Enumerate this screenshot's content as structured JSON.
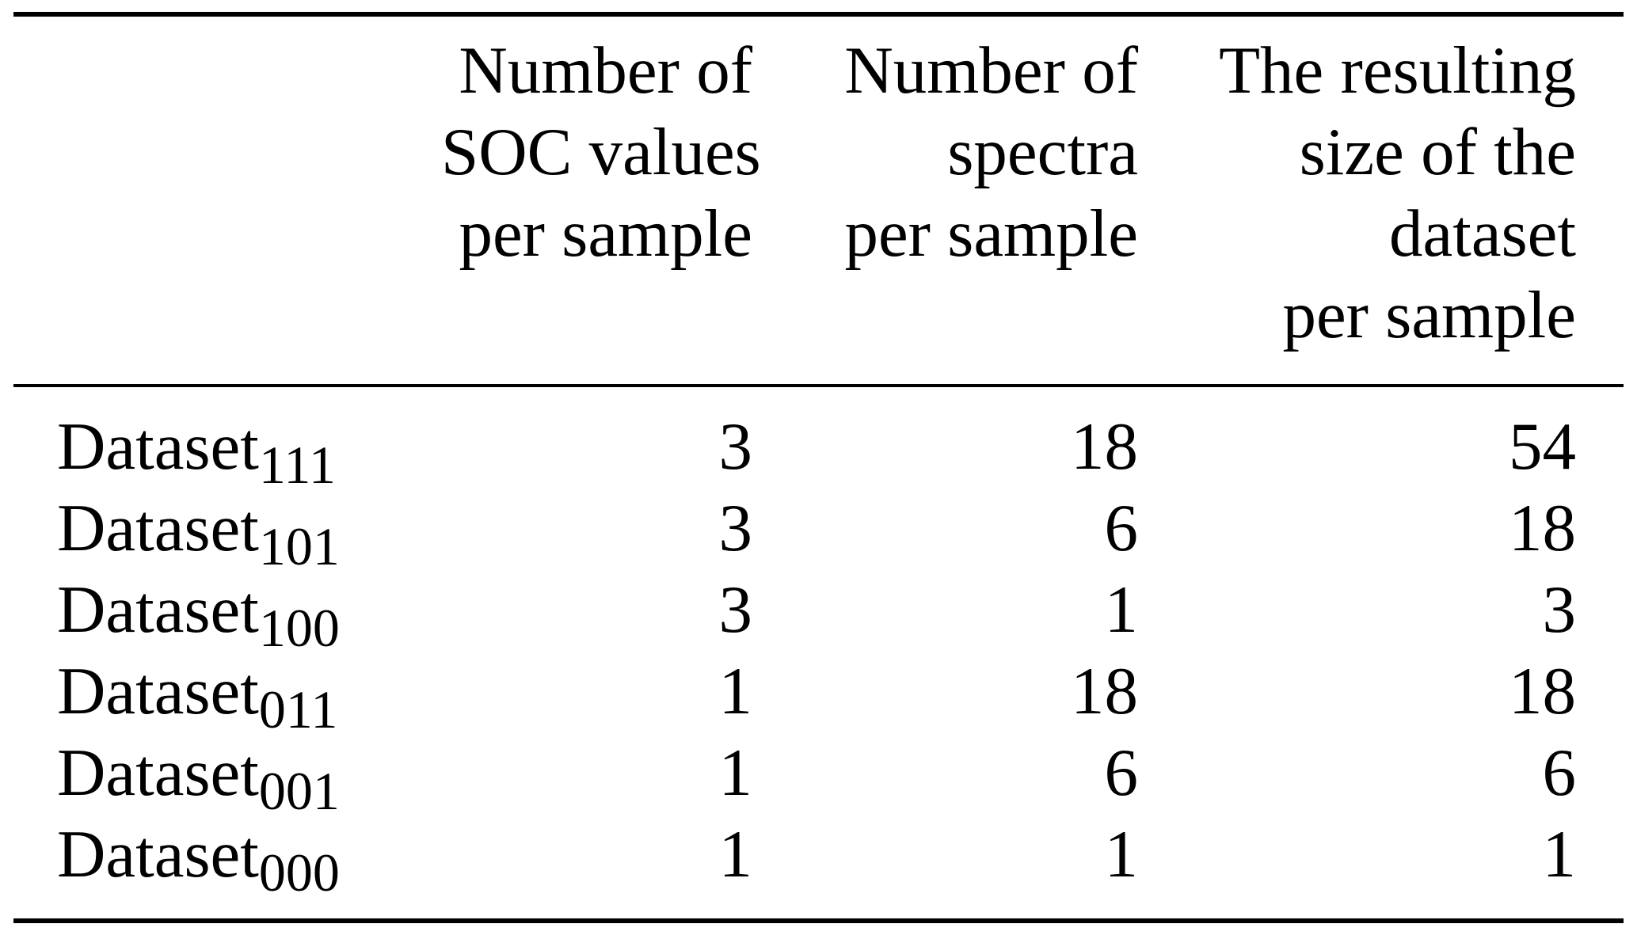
{
  "page": {
    "background_color": "#ffffff",
    "text_color": "#000000"
  },
  "table": {
    "header": {
      "label_col": "",
      "soc_col_lines": [
        "Number of",
        "SOC values",
        "per sample"
      ],
      "spectra_col_lines": [
        "Number of",
        "spectra",
        "per sample"
      ],
      "size_col_lines": [
        "The resulting",
        "size of the",
        "dataset",
        "per sample"
      ]
    },
    "rows": [
      {
        "label_base": "Dataset",
        "label_sub": "111",
        "soc": "3",
        "spectra": "18",
        "size": "54"
      },
      {
        "label_base": "Dataset",
        "label_sub": "101",
        "soc": "3",
        "spectra": "6",
        "size": "18"
      },
      {
        "label_base": "Dataset",
        "label_sub": "100",
        "soc": "3",
        "spectra": "1",
        "size": "3"
      },
      {
        "label_base": "Dataset",
        "label_sub": "011",
        "soc": "1",
        "spectra": "18",
        "size": "18"
      },
      {
        "label_base": "Dataset",
        "label_sub": "001",
        "soc": "1",
        "spectra": "6",
        "size": "6"
      },
      {
        "label_base": "Dataset",
        "label_sub": "000",
        "soc": "1",
        "spectra": "1",
        "size": "1"
      }
    ]
  },
  "chart_data": {
    "type": "table",
    "columns": [
      "",
      "Number of SOC values per sample",
      "Number of spectra per sample",
      "The resulting size of the dataset per sample"
    ],
    "rows": [
      [
        "Dataset_111",
        3,
        18,
        54
      ],
      [
        "Dataset_101",
        3,
        6,
        18
      ],
      [
        "Dataset_100",
        3,
        1,
        3
      ],
      [
        "Dataset_011",
        1,
        18,
        18
      ],
      [
        "Dataset_001",
        1,
        6,
        6
      ],
      [
        "Dataset_000",
        1,
        1,
        1
      ]
    ]
  }
}
